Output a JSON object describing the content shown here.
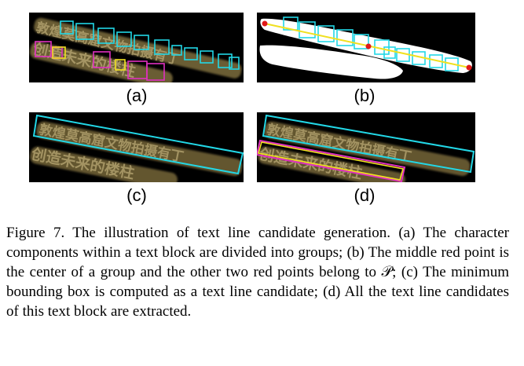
{
  "figure": {
    "panels": [
      {
        "id": "a",
        "label": "(a)"
      },
      {
        "id": "b",
        "label": "(b)"
      },
      {
        "id": "c",
        "label": "(c)"
      },
      {
        "id": "d",
        "label": "(d)"
      }
    ],
    "text_line_1": "敦煌莫高窟文物拍摄有丁",
    "text_line_2": "创造未来的楼柱",
    "colors": {
      "cyan": "#22d7e6",
      "magenta": "#e030c0",
      "yellow": "#f0e020",
      "red": "#e01818",
      "text_fill": "#8a7a45"
    }
  },
  "caption": {
    "text": "Figure 7. The illustration of text line candidate generation. (a) The character components within a text block are divided into groups; (b) The middle red point is the center of a group and the other two red points belong to 𝒫; (c) The minimum bounding box is computed as a text line candidate; (d) All the text line candidates of this text block are extracted."
  }
}
